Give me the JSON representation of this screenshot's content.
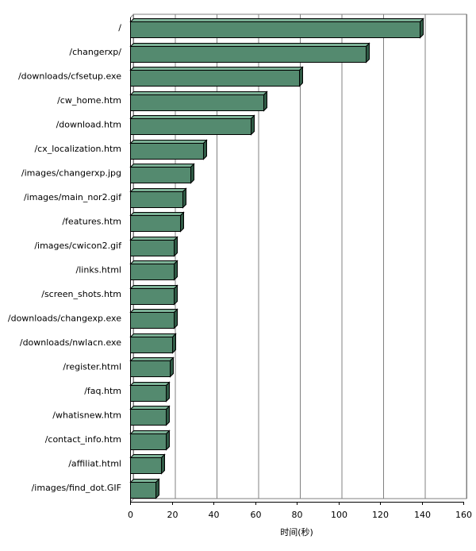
{
  "chart_data": {
    "type": "bar",
    "orientation": "horizontal",
    "style": "3d",
    "categories": [
      "/",
      "/changerxp/",
      "/downloads/cfsetup.exe",
      "/cw_home.htm",
      "/download.htm",
      "/cx_localization.htm",
      "/images/changerxp.jpg",
      "/images/main_nor2.gif",
      "/features.htm",
      "/images/cwicon2.gif",
      "/links.html",
      "/screen_shots.htm",
      "/downloads/changexp.exe",
      "/downloads/nwlacn.exe",
      "/register.html",
      "/faq.htm",
      "/whatisnew.htm",
      "/contact_info.htm",
      "/affiliat.html",
      "/images/find_dot.GIF"
    ],
    "values": [
      139,
      113,
      81,
      64,
      58,
      35,
      29,
      25,
      24,
      21,
      21,
      21,
      21,
      20,
      19,
      17,
      17,
      17,
      15,
      12
    ],
    "xlabel": "时间(秒)",
    "ylabel": "",
    "xlim": [
      0,
      160
    ],
    "xticks": [
      0,
      20,
      40,
      60,
      80,
      100,
      120,
      140,
      160
    ],
    "grid": true,
    "bar_color": "#548a6f"
  }
}
